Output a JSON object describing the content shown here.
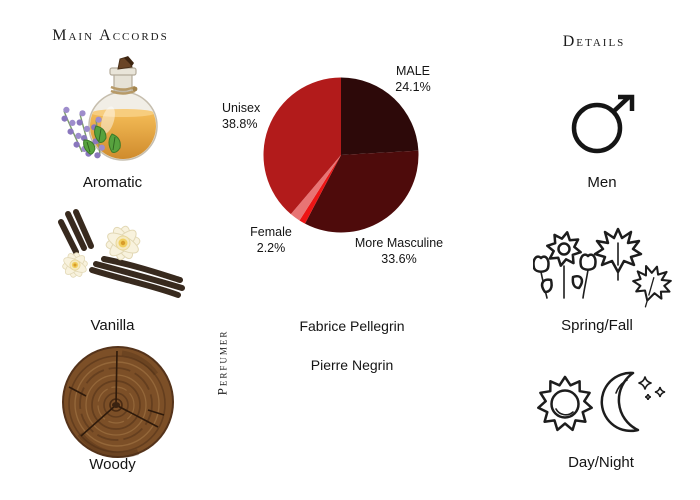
{
  "page": {
    "background_color": "#ffffff",
    "text_color": "#141414"
  },
  "main_accords": {
    "heading": "Main Accords",
    "items": [
      {
        "label": "Aromatic",
        "image": "perfume-bottle-with-lavender-and-mint-photo"
      },
      {
        "label": "Vanilla",
        "image": "vanilla-orchid-flowers-with-pods-photo"
      },
      {
        "label": "Woody",
        "image": "tree-trunk-cross-section-photo"
      }
    ]
  },
  "chart_data": {
    "type": "pie",
    "title": "",
    "unit": "%",
    "direction": "clockwise",
    "start_angle_deg": 0,
    "legend_position": "none",
    "slices": [
      {
        "label": "MALE",
        "value": 24.1,
        "color": "#2d0909"
      },
      {
        "label": "More Masculine",
        "value": 33.6,
        "color": "#4e0b0b"
      },
      {
        "label": "",
        "value": 1.3,
        "color": "#ed1515"
      },
      {
        "label": "Female",
        "value": 2.2,
        "color": "#e87474"
      },
      {
        "label": "Unisex",
        "value": 38.8,
        "color": "#b21b1b"
      }
    ],
    "labels": {
      "male": {
        "line1": "MALE",
        "line2": "24.1%"
      },
      "unisex": {
        "line1": "Unisex",
        "line2": "38.8%"
      },
      "female": {
        "line1": "Female",
        "line2": "2.2%"
      },
      "more_masculine": {
        "line1": "More Masculine",
        "line2": "33.6%"
      }
    }
  },
  "perfumer": {
    "heading": "Perfumer",
    "names": [
      "Fabrice Pellegrin",
      "Pierre Negrin"
    ]
  },
  "details": {
    "heading": "Details",
    "items": [
      {
        "label": "Men",
        "icon": "male-gender-symbol"
      },
      {
        "label": "Spring/Fall",
        "icon": "flowers-and-maple-leaves"
      },
      {
        "label": "Day/Night",
        "icon": "sun-and-crescent-moon"
      }
    ]
  }
}
